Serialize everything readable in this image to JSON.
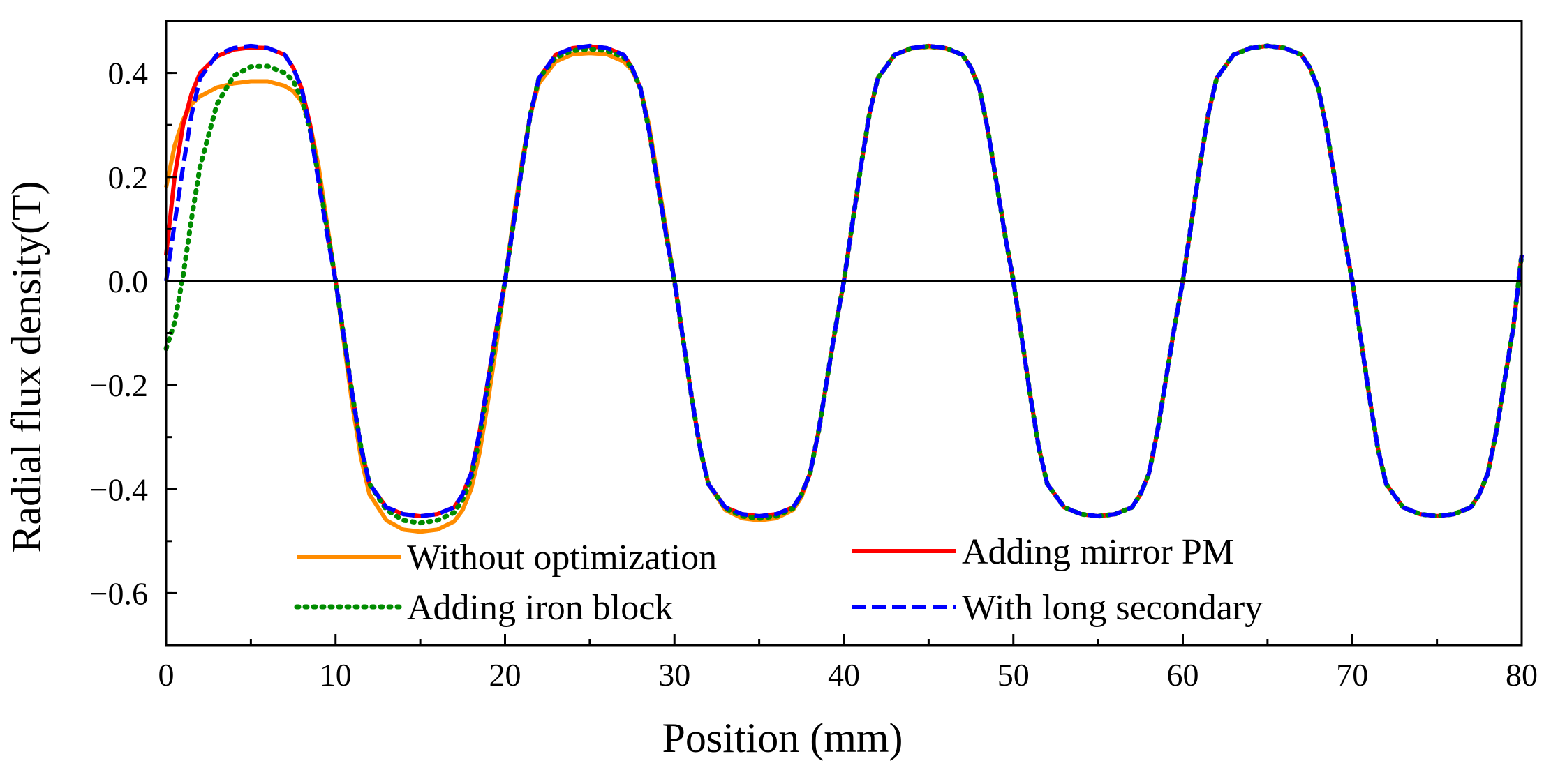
{
  "chart_data": {
    "type": "line",
    "title": "",
    "xlabel": "Position (mm)",
    "ylabel": "Radial flux density(T)",
    "xlim": [
      0,
      80
    ],
    "ylim": [
      -0.7,
      0.5
    ],
    "x_ticks": [
      0,
      10,
      20,
      30,
      40,
      50,
      60,
      70,
      80
    ],
    "x_tick_labels": [
      "0",
      "10",
      "20",
      "30",
      "40",
      "50",
      "60",
      "70",
      "80"
    ],
    "y_ticks": [
      -0.6,
      -0.4,
      -0.2,
      0.0,
      0.2,
      0.4
    ],
    "y_tick_labels": [
      "−0.6",
      "−0.4",
      "−0.2",
      "0.0",
      "0.2",
      "0.4"
    ],
    "zero_line": true,
    "grid": false,
    "legend_position": "bottom",
    "series": [
      {
        "name": "Without optimization",
        "color": "#FF8C00",
        "style": "solid",
        "x": [
          0,
          0.5,
          1,
          1.5,
          2,
          3,
          4,
          5,
          6,
          7,
          7.5,
          8,
          8.5,
          9,
          9.5,
          10,
          10.5,
          11,
          11.5,
          12,
          13,
          14,
          15,
          16,
          17,
          17.5,
          18,
          18.5,
          19,
          19.5,
          20,
          20.5,
          21,
          21.5,
          22,
          23,
          24,
          25,
          26,
          27,
          27.5,
          28,
          28.5,
          29,
          29.5,
          30,
          30.5,
          31,
          31.5,
          32,
          33,
          34,
          35,
          36,
          37,
          37.5,
          38,
          38.5,
          39,
          39.5,
          40,
          40.5,
          41,
          41.5,
          42,
          43,
          44,
          45,
          46,
          47,
          47.5,
          48,
          48.5,
          49,
          49.5,
          50,
          50.5,
          51,
          51.5,
          52,
          53,
          54,
          55,
          56,
          57,
          57.5,
          58,
          58.5,
          59,
          59.5,
          60,
          60.5,
          61,
          61.5,
          62,
          63,
          64,
          65,
          66,
          67,
          67.5,
          68,
          68.5,
          69,
          69.5,
          70,
          70.5,
          71,
          71.5,
          72,
          73,
          74,
          75,
          76,
          77,
          77.5,
          78,
          78.5,
          79,
          79.5,
          80
        ],
        "values": [
          0.18,
          0.26,
          0.31,
          0.34,
          0.355,
          0.372,
          0.38,
          0.384,
          0.384,
          0.375,
          0.365,
          0.345,
          0.3,
          0.22,
          0.11,
          0.0,
          -0.12,
          -0.24,
          -0.34,
          -0.41,
          -0.46,
          -0.478,
          -0.482,
          -0.478,
          -0.462,
          -0.44,
          -0.4,
          -0.33,
          -0.23,
          -0.12,
          0.0,
          0.12,
          0.23,
          0.32,
          0.38,
          0.422,
          0.436,
          0.438,
          0.436,
          0.422,
          0.405,
          0.37,
          0.3,
          0.2,
          0.1,
          0.0,
          -0.11,
          -0.22,
          -0.32,
          -0.39,
          -0.44,
          -0.456,
          -0.46,
          -0.456,
          -0.44,
          -0.415,
          -0.37,
          -0.29,
          -0.19,
          -0.09,
          0.0,
          0.11,
          0.22,
          0.32,
          0.39,
          0.435,
          0.447,
          0.45,
          0.447,
          0.435,
          0.41,
          0.37,
          0.29,
          0.19,
          0.09,
          0.0,
          -0.11,
          -0.22,
          -0.32,
          -0.39,
          -0.435,
          -0.448,
          -0.452,
          -0.448,
          -0.435,
          -0.41,
          -0.37,
          -0.29,
          -0.19,
          -0.09,
          0.0,
          0.11,
          0.22,
          0.32,
          0.39,
          0.435,
          0.448,
          0.452,
          0.448,
          0.435,
          0.41,
          0.37,
          0.29,
          0.19,
          0.09,
          0.0,
          -0.11,
          -0.22,
          -0.32,
          -0.39,
          -0.435,
          -0.448,
          -0.452,
          -0.448,
          -0.435,
          -0.41,
          -0.37,
          -0.29,
          -0.19,
          -0.09,
          0.05
        ]
      },
      {
        "name": "Adding mirror PM",
        "color": "#FF0000",
        "style": "solid",
        "x": [
          0,
          0.5,
          1,
          1.5,
          2,
          3,
          4,
          5,
          6,
          7,
          7.5,
          8,
          8.5,
          9,
          9.5,
          10,
          10.5,
          11,
          11.5,
          12,
          13,
          14,
          15,
          16,
          17,
          17.5,
          18,
          18.5,
          19,
          19.5,
          20,
          20.5,
          21,
          21.5,
          22,
          23,
          24,
          25,
          26,
          27,
          27.5,
          28,
          28.5,
          29,
          29.5,
          30,
          30.5,
          31,
          31.5,
          32,
          33,
          34,
          35,
          36,
          37,
          37.5,
          38,
          38.5,
          39,
          39.5,
          40,
          40.5,
          41,
          41.5,
          42,
          43,
          44,
          45,
          46,
          47,
          47.5,
          48,
          48.5,
          49,
          49.5,
          50,
          50.5,
          51,
          51.5,
          52,
          53,
          54,
          55,
          56,
          57,
          57.5,
          58,
          58.5,
          59,
          59.5,
          60,
          60.5,
          61,
          61.5,
          62,
          63,
          64,
          65,
          66,
          67,
          67.5,
          68,
          68.5,
          69,
          69.5,
          70,
          70.5,
          71,
          71.5,
          72,
          73,
          74,
          75,
          76,
          77,
          77.5,
          78,
          78.5,
          79,
          79.5,
          80
        ],
        "values": [
          0.05,
          0.2,
          0.3,
          0.36,
          0.4,
          0.432,
          0.445,
          0.449,
          0.448,
          0.435,
          0.41,
          0.37,
          0.3,
          0.2,
          0.1,
          0.0,
          -0.11,
          -0.22,
          -0.32,
          -0.39,
          -0.435,
          -0.448,
          -0.452,
          -0.448,
          -0.435,
          -0.41,
          -0.37,
          -0.29,
          -0.19,
          -0.09,
          0.0,
          0.11,
          0.22,
          0.32,
          0.39,
          0.435,
          0.448,
          0.451,
          0.448,
          0.435,
          0.41,
          0.37,
          0.29,
          0.19,
          0.09,
          0.0,
          -0.11,
          -0.22,
          -0.32,
          -0.39,
          -0.435,
          -0.448,
          -0.452,
          -0.448,
          -0.435,
          -0.41,
          -0.37,
          -0.29,
          -0.19,
          -0.09,
          0.0,
          0.11,
          0.22,
          0.32,
          0.39,
          0.435,
          0.448,
          0.452,
          0.448,
          0.435,
          0.41,
          0.37,
          0.29,
          0.19,
          0.09,
          0.0,
          -0.11,
          -0.22,
          -0.32,
          -0.39,
          -0.435,
          -0.448,
          -0.452,
          -0.448,
          -0.435,
          -0.41,
          -0.37,
          -0.29,
          -0.19,
          -0.09,
          0.0,
          0.11,
          0.22,
          0.32,
          0.39,
          0.435,
          0.448,
          0.452,
          0.448,
          0.435,
          0.41,
          0.37,
          0.29,
          0.19,
          0.09,
          0.0,
          -0.11,
          -0.22,
          -0.32,
          -0.39,
          -0.435,
          -0.448,
          -0.452,
          -0.448,
          -0.435,
          -0.41,
          -0.37,
          -0.29,
          -0.19,
          -0.09,
          0.05
        ]
      },
      {
        "name": "Adding iron block",
        "color": "#008C00",
        "style": "dotted",
        "x": [
          0,
          0.5,
          1,
          1.5,
          2,
          3,
          4,
          5,
          6,
          7,
          7.5,
          8,
          8.5,
          9,
          9.5,
          10,
          10.5,
          11,
          11.5,
          12,
          13,
          14,
          15,
          16,
          17,
          17.5,
          18,
          18.5,
          19,
          19.5,
          20,
          20.5,
          21,
          21.5,
          22,
          23,
          24,
          25,
          26,
          27,
          27.5,
          28,
          28.5,
          29,
          29.5,
          30,
          30.5,
          31,
          31.5,
          32,
          33,
          34,
          35,
          36,
          37,
          37.5,
          38,
          38.5,
          39,
          39.5,
          40,
          40.5,
          41,
          41.5,
          42,
          43,
          44,
          45,
          46,
          47,
          47.5,
          48,
          48.5,
          49,
          49.5,
          50,
          50.5,
          51,
          51.5,
          52,
          53,
          54,
          55,
          56,
          57,
          57.5,
          58,
          58.5,
          59,
          59.5,
          60,
          60.5,
          61,
          61.5,
          62,
          63,
          64,
          65,
          66,
          67,
          67.5,
          68,
          68.5,
          69,
          69.5,
          70,
          70.5,
          71,
          71.5,
          72,
          73,
          74,
          75,
          76,
          77,
          77.5,
          78,
          78.5,
          79,
          79.5,
          80
        ],
        "values": [
          -0.13,
          -0.08,
          0.01,
          0.12,
          0.22,
          0.34,
          0.395,
          0.412,
          0.413,
          0.4,
          0.385,
          0.35,
          0.29,
          0.2,
          0.1,
          0.0,
          -0.11,
          -0.22,
          -0.32,
          -0.39,
          -0.44,
          -0.46,
          -0.465,
          -0.46,
          -0.445,
          -0.42,
          -0.38,
          -0.3,
          -0.2,
          -0.1,
          0.0,
          0.11,
          0.22,
          0.32,
          0.39,
          0.43,
          0.443,
          0.446,
          0.443,
          0.43,
          0.408,
          0.37,
          0.29,
          0.19,
          0.09,
          0.0,
          -0.11,
          -0.22,
          -0.32,
          -0.39,
          -0.437,
          -0.452,
          -0.456,
          -0.452,
          -0.437,
          -0.41,
          -0.37,
          -0.29,
          -0.19,
          -0.09,
          0.0,
          0.11,
          0.22,
          0.32,
          0.39,
          0.435,
          0.448,
          0.451,
          0.448,
          0.435,
          0.41,
          0.37,
          0.29,
          0.19,
          0.09,
          0.0,
          -0.11,
          -0.22,
          -0.32,
          -0.39,
          -0.435,
          -0.448,
          -0.452,
          -0.448,
          -0.435,
          -0.41,
          -0.37,
          -0.29,
          -0.19,
          -0.09,
          0.0,
          0.11,
          0.22,
          0.32,
          0.39,
          0.435,
          0.448,
          0.452,
          0.448,
          0.435,
          0.41,
          0.37,
          0.29,
          0.19,
          0.09,
          0.0,
          -0.11,
          -0.22,
          -0.32,
          -0.39,
          -0.435,
          -0.448,
          -0.452,
          -0.448,
          -0.435,
          -0.41,
          -0.37,
          -0.29,
          -0.19,
          -0.09,
          0.05
        ]
      },
      {
        "name": "With long secondary",
        "color": "#0000FF",
        "style": "dashed",
        "x": [
          0,
          0.5,
          1,
          1.5,
          2,
          3,
          4,
          5,
          6,
          7,
          7.5,
          8,
          8.5,
          9,
          9.5,
          10,
          10.5,
          11,
          11.5,
          12,
          13,
          14,
          15,
          16,
          17,
          17.5,
          18,
          18.5,
          19,
          19.5,
          20,
          20.5,
          21,
          21.5,
          22,
          23,
          24,
          25,
          26,
          27,
          27.5,
          28,
          28.5,
          29,
          29.5,
          30,
          30.5,
          31,
          31.5,
          32,
          33,
          34,
          35,
          36,
          37,
          37.5,
          38,
          38.5,
          39,
          39.5,
          40,
          40.5,
          41,
          41.5,
          42,
          43,
          44,
          45,
          46,
          47,
          47.5,
          48,
          48.5,
          49,
          49.5,
          50,
          50.5,
          51,
          51.5,
          52,
          53,
          54,
          55,
          56,
          57,
          57.5,
          58,
          58.5,
          59,
          59.5,
          60,
          60.5,
          61,
          61.5,
          62,
          63,
          64,
          65,
          66,
          67,
          67.5,
          68,
          68.5,
          69,
          69.5,
          70,
          70.5,
          71,
          71.5,
          72,
          73,
          74,
          75,
          76,
          77,
          77.5,
          78,
          78.5,
          79,
          79.5,
          80
        ],
        "values": [
          0.0,
          0.11,
          0.22,
          0.32,
          0.39,
          0.435,
          0.448,
          0.452,
          0.448,
          0.435,
          0.41,
          0.37,
          0.29,
          0.19,
          0.09,
          0.0,
          -0.11,
          -0.22,
          -0.32,
          -0.39,
          -0.435,
          -0.448,
          -0.452,
          -0.448,
          -0.435,
          -0.41,
          -0.37,
          -0.29,
          -0.19,
          -0.09,
          0.0,
          0.11,
          0.22,
          0.32,
          0.39,
          0.435,
          0.448,
          0.452,
          0.448,
          0.435,
          0.41,
          0.37,
          0.29,
          0.19,
          0.09,
          0.0,
          -0.11,
          -0.22,
          -0.32,
          -0.39,
          -0.435,
          -0.448,
          -0.452,
          -0.448,
          -0.435,
          -0.41,
          -0.37,
          -0.29,
          -0.19,
          -0.09,
          0.0,
          0.11,
          0.22,
          0.32,
          0.39,
          0.435,
          0.448,
          0.452,
          0.448,
          0.435,
          0.41,
          0.37,
          0.29,
          0.19,
          0.09,
          0.0,
          -0.11,
          -0.22,
          -0.32,
          -0.39,
          -0.435,
          -0.448,
          -0.452,
          -0.448,
          -0.435,
          -0.41,
          -0.37,
          -0.29,
          -0.19,
          -0.09,
          0.0,
          0.11,
          0.22,
          0.32,
          0.39,
          0.435,
          0.448,
          0.452,
          0.448,
          0.435,
          0.41,
          0.37,
          0.29,
          0.19,
          0.09,
          0.0,
          -0.11,
          -0.22,
          -0.32,
          -0.39,
          -0.435,
          -0.448,
          -0.452,
          -0.448,
          -0.435,
          -0.41,
          -0.37,
          -0.29,
          -0.19,
          -0.09,
          0.05
        ]
      }
    ]
  }
}
